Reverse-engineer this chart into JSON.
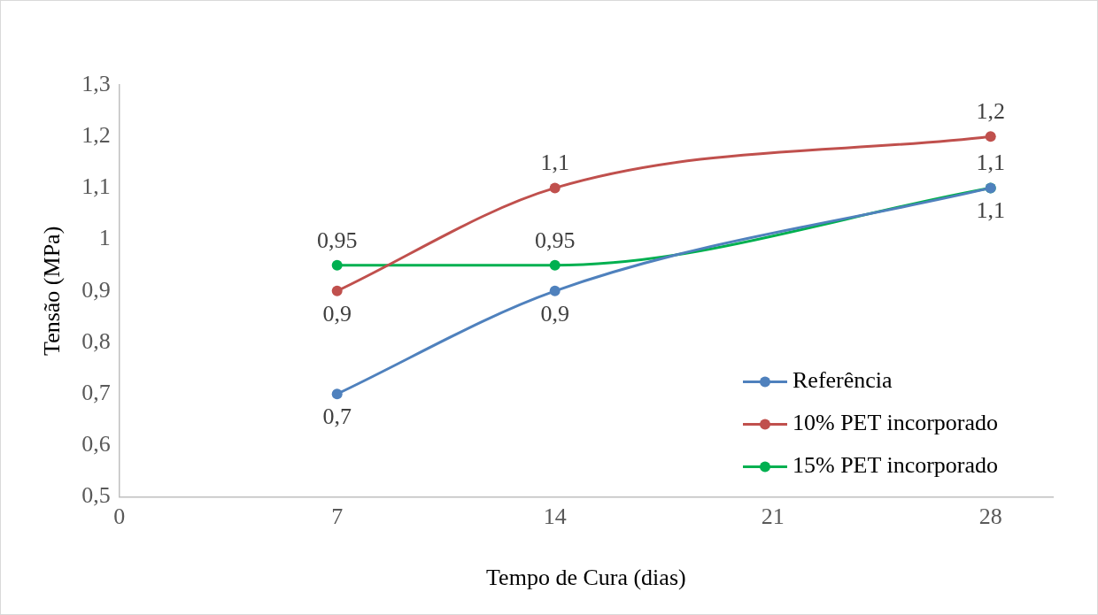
{
  "chart_data": {
    "type": "line",
    "xlabel": "Tempo de Cura (dias)",
    "ylabel": "Tensão (MPa)",
    "x": [
      7,
      14,
      28
    ],
    "series": [
      {
        "name": "Referência",
        "color": "#4f81bd",
        "values": [
          0.7,
          0.9,
          1.1
        ],
        "value_labels": [
          "0,7",
          "0,9",
          "1,1"
        ]
      },
      {
        "name": "10% PET incorporado",
        "color": "#c0504d",
        "values": [
          0.9,
          1.1,
          1.2
        ],
        "value_labels": [
          "0,9",
          "1,1",
          "1,2"
        ]
      },
      {
        "name": "15% PET incorporado",
        "color": "#00b050",
        "values": [
          0.95,
          0.95,
          1.1
        ],
        "value_labels": [
          "0,95",
          "0,95",
          "1,1"
        ]
      }
    ],
    "xlim": [
      0,
      30
    ],
    "xticks": [
      0,
      7,
      14,
      21,
      28
    ],
    "ylim": [
      0.5,
      1.3
    ],
    "yticks": [
      {
        "value": 0.5,
        "label": "0,5"
      },
      {
        "value": 0.6,
        "label": "0,6"
      },
      {
        "value": 0.7,
        "label": "0,7"
      },
      {
        "value": 0.8,
        "label": "0,8"
      },
      {
        "value": 0.9,
        "label": "0,9"
      },
      {
        "value": 1,
        "label": "1"
      },
      {
        "value": 1.1,
        "label": "1,1"
      },
      {
        "value": 1.2,
        "label": "1,2"
      },
      {
        "value": 1.3,
        "label": "1,3"
      }
    ],
    "grid": false,
    "legend": "bottom right",
    "marker": "circle",
    "line_style": "solid"
  }
}
